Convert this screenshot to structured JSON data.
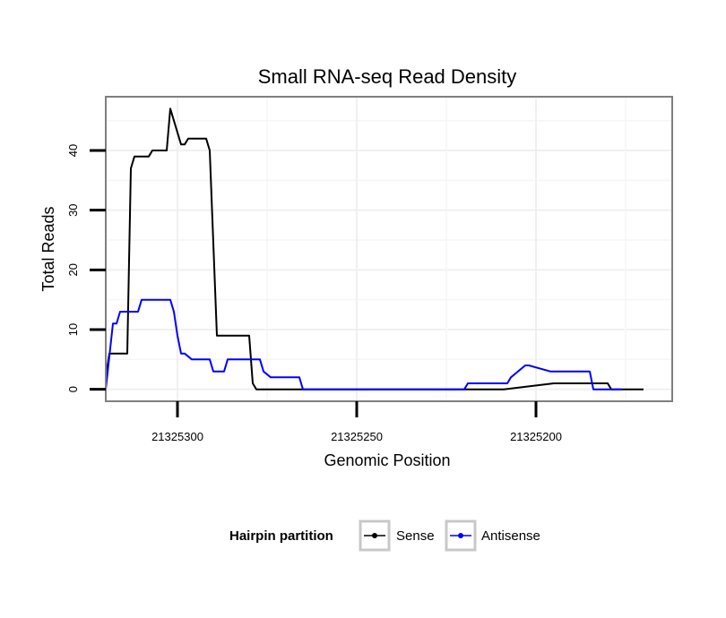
{
  "chart_data": {
    "type": "line",
    "title": "Small RNA-seq Read Density",
    "xlabel": "Genomic Position",
    "ylabel": "Total Reads",
    "x_reversed": true,
    "xlim": [
      21325320,
      21325162
    ],
    "ylim": [
      -2,
      49
    ],
    "x_ticks": [
      21325300,
      21325250,
      21325200
    ],
    "x_tick_labels": [
      "21325300",
      "21325250",
      "21325200"
    ],
    "y_ticks": [
      0,
      10,
      20,
      30,
      40
    ],
    "y_tick_labels": [
      "0",
      "10",
      "20",
      "30",
      "40"
    ],
    "grid": true,
    "legend": {
      "title": "Hairpin partition",
      "position": "bottom",
      "entries": [
        {
          "label": "Sense",
          "color": "#000000"
        },
        {
          "label": "Antisense",
          "color": "#0000ff"
        }
      ]
    },
    "series": [
      {
        "name": "Sense",
        "color": "#000000",
        "x": [
          21325320,
          21325319,
          21325314,
          21325313,
          21325312,
          21325308,
          21325307,
          21325303,
          21325302,
          21325299,
          21325298,
          21325297,
          21325296,
          21325295,
          21325292,
          21325291,
          21325289,
          21325280,
          21325279,
          21325278,
          21325265,
          21325210,
          21325209,
          21325195,
          21325180,
          21325179,
          21325170
        ],
        "values": [
          2,
          6,
          6,
          37,
          39,
          39,
          40,
          40,
          47,
          41,
          41,
          42,
          42,
          42,
          42,
          40,
          9,
          9,
          1,
          0,
          0,
          0,
          0,
          1,
          1,
          0,
          0
        ]
      },
      {
        "name": "Antisense",
        "color": "#0000ff",
        "x": [
          21325320,
          21325318,
          21325317,
          21325316,
          21325315,
          21325311,
          21325310,
          21325302,
          21325301,
          21325300,
          21325299,
          21325298,
          21325296,
          21325291,
          21325290,
          21325287,
          21325286,
          21325277,
          21325276,
          21325274,
          21325266,
          21325265,
          21325220,
          21325219,
          21325208,
          21325207,
          21325203,
          21325202,
          21325196,
          21325185,
          21325184,
          21325176
        ],
        "values": [
          0,
          11,
          11,
          13,
          13,
          13,
          15,
          15,
          13,
          9,
          6,
          6,
          5,
          5,
          3,
          3,
          5,
          5,
          3,
          2,
          2,
          0,
          0,
          1,
          1,
          2,
          4,
          4,
          3,
          3,
          0,
          0
        ]
      }
    ]
  }
}
